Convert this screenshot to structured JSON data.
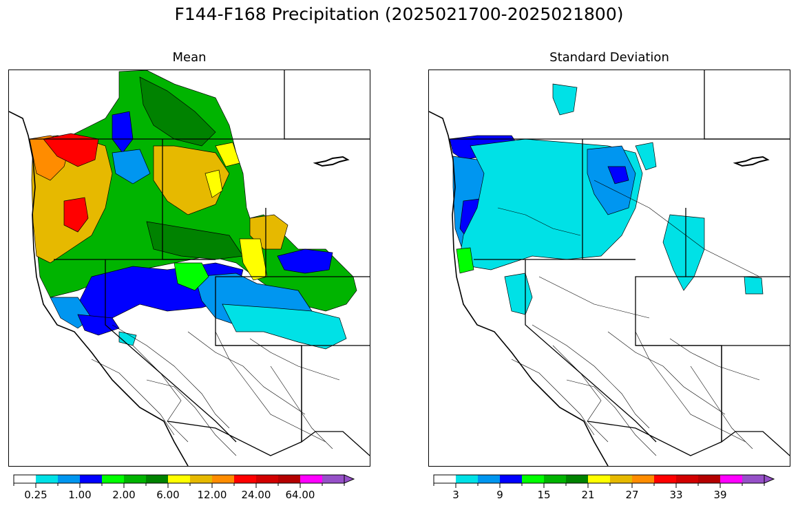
{
  "figure": {
    "title": "F144-F168 Precipitation (2025021700-2025021800)"
  },
  "panels": [
    {
      "id": "mean",
      "title": "Mean",
      "colorbar": {
        "colors": [
          "#ffffff",
          "#00e1e6",
          "#0096f0",
          "#0000ff",
          "#00ff00",
          "#00b400",
          "#008200",
          "#ffff00",
          "#e6b900",
          "#ff8c00",
          "#ff0000",
          "#d20000",
          "#b40000",
          "#ff00ff",
          "#9650c8"
        ],
        "tick_labels": [
          "0.25",
          "1.00",
          "2.00",
          "6.00",
          "12.00",
          "24.00",
          "64.00"
        ],
        "extend": "max"
      }
    },
    {
      "id": "std",
      "title": "Standard Deviation",
      "colorbar": {
        "colors": [
          "#ffffff",
          "#00e1e6",
          "#0096f0",
          "#0000ff",
          "#00ff00",
          "#00b400",
          "#008200",
          "#ffff00",
          "#e6b900",
          "#ff8c00",
          "#ff0000",
          "#d20000",
          "#b40000",
          "#ff00ff",
          "#9650c8"
        ],
        "tick_labels": [
          "3",
          "9",
          "15",
          "21",
          "27",
          "33",
          "39"
        ],
        "extend": "max"
      }
    }
  ]
}
